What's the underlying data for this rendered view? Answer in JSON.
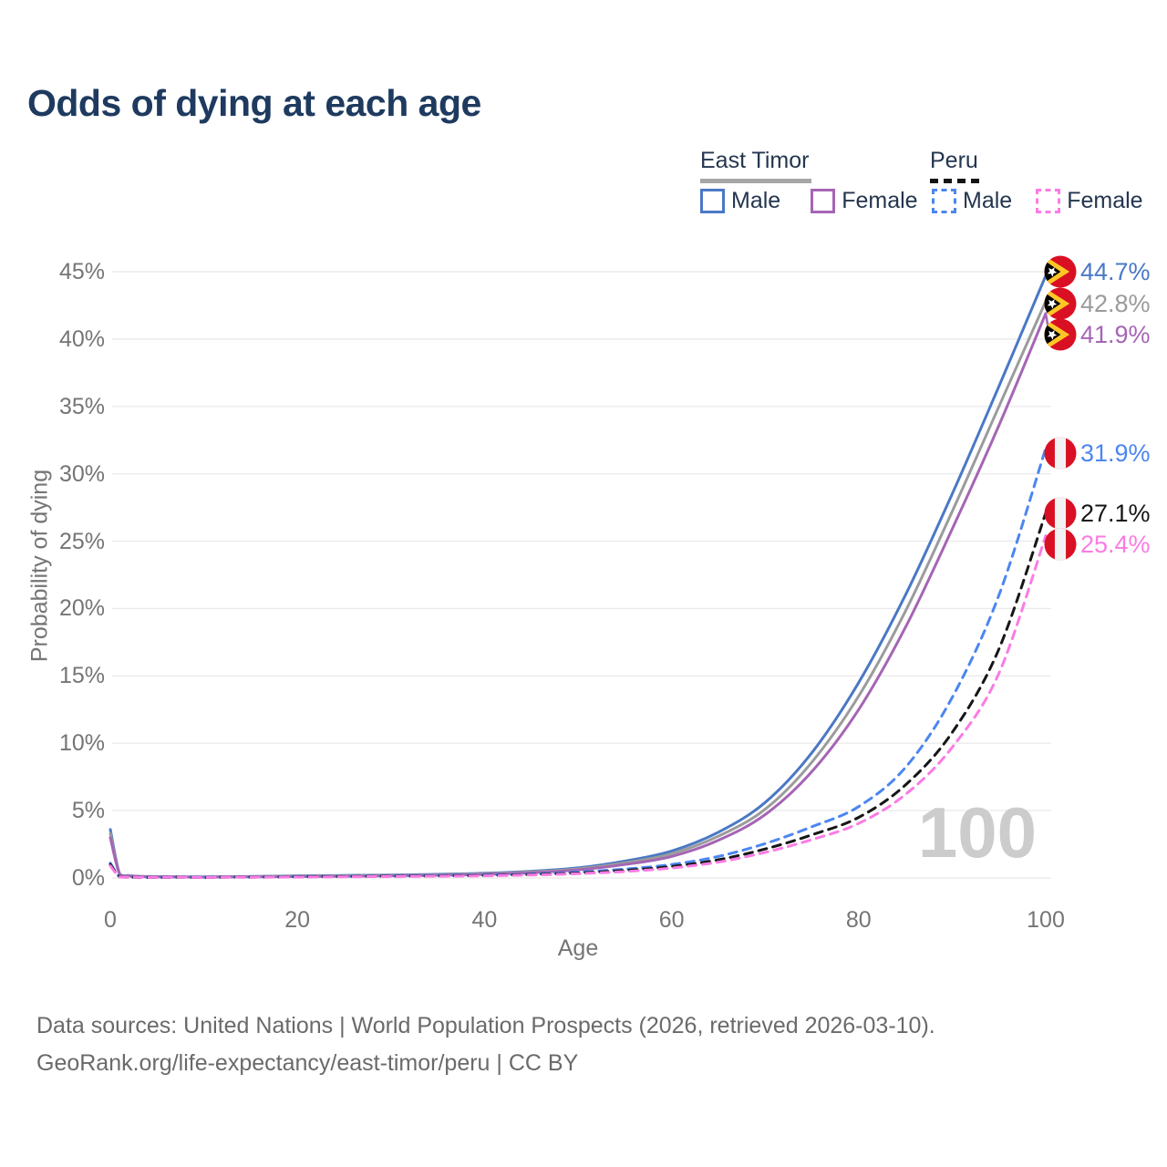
{
  "page": {
    "title": "Odds of dying at each age",
    "legend": {
      "east_timor": {
        "label": "East Timor",
        "male": "Male",
        "female": "Female"
      },
      "peru": {
        "label": "Peru",
        "male": "Male",
        "female": "Female"
      }
    },
    "watermark_age": "100",
    "footer": {
      "line1": "Data sources: United Nations | World Population Prospects (2026, retrieved 2026-03-10).",
      "line2": "GeoRank.org/life-expectancy/east-timor/peru | CC BY"
    }
  },
  "colors": {
    "title_navy": "#1e3a5f",
    "tick_gray": "#757575",
    "gridline": "#ebebeb",
    "watermark": "#cccccc",
    "east_timor_male": "#4a78c5",
    "east_timor_both": "#9b9b9b",
    "east_timor_female": "#a565b4",
    "peru_male": "#4c86f0",
    "peru_both": "#161616",
    "peru_female": "#fb7be4",
    "flag_red": "#d91023",
    "flag_yellow": "#ffc726"
  },
  "chart_data": {
    "type": "line",
    "title": "Odds of dying at each age",
    "xlabel": "Age",
    "ylabel": "Probability of dying",
    "xlim": [
      0,
      100
    ],
    "ylim": [
      0,
      45
    ],
    "x_ticks": [
      0,
      20,
      40,
      60,
      80,
      100
    ],
    "y_ticks": [
      0,
      5,
      10,
      15,
      20,
      25,
      30,
      35,
      40,
      45
    ],
    "y_tick_suffix": "%",
    "grid": "horizontal",
    "legend_position": "top-right",
    "ages": [
      0,
      1,
      2,
      3,
      4,
      5,
      10,
      15,
      20,
      25,
      30,
      35,
      40,
      45,
      50,
      55,
      60,
      65,
      70,
      75,
      80,
      85,
      90,
      95,
      100
    ],
    "series": [
      {
        "id": "east-timor-male",
        "country": "East Timor",
        "sex": "Male",
        "style": "solid",
        "color": "#4a78c5",
        "end_label": "44.7%",
        "flag": "east-timor",
        "values": [
          3.6,
          0.3,
          0.18,
          0.13,
          0.11,
          0.1,
          0.08,
          0.11,
          0.16,
          0.19,
          0.22,
          0.27,
          0.35,
          0.5,
          0.75,
          1.25,
          2.0,
          3.4,
          5.6,
          9.3,
          14.5,
          21.0,
          28.5,
          36.5,
          44.7
        ]
      },
      {
        "id": "east-timor-both",
        "country": "East Timor",
        "sex": "Both sexes",
        "style": "solid",
        "color": "#9b9b9b",
        "end_label": "42.8%",
        "flag": "east-timor",
        "values": [
          3.3,
          0.28,
          0.16,
          0.12,
          0.1,
          0.09,
          0.07,
          0.1,
          0.14,
          0.17,
          0.19,
          0.24,
          0.31,
          0.45,
          0.68,
          1.12,
          1.8,
          3.1,
          5.1,
          8.6,
          13.5,
          19.8,
          27.2,
          35.0,
          42.8
        ]
      },
      {
        "id": "east-timor-female",
        "country": "East Timor",
        "sex": "Female",
        "style": "solid",
        "color": "#a565b4",
        "end_label": "41.9%",
        "flag": "east-timor",
        "values": [
          3.0,
          0.26,
          0.15,
          0.11,
          0.09,
          0.08,
          0.06,
          0.08,
          0.11,
          0.13,
          0.16,
          0.2,
          0.27,
          0.39,
          0.6,
          1.0,
          1.6,
          2.8,
          4.7,
          7.9,
          12.5,
          18.6,
          25.9,
          33.6,
          41.9
        ]
      },
      {
        "id": "peru-male",
        "country": "Peru",
        "sex": "Male",
        "style": "dashed",
        "color": "#4c86f0",
        "end_label": "31.9%",
        "flag": "peru",
        "values": [
          1.1,
          0.09,
          0.06,
          0.05,
          0.04,
          0.04,
          0.04,
          0.07,
          0.11,
          0.13,
          0.15,
          0.18,
          0.22,
          0.3,
          0.44,
          0.66,
          1.0,
          1.6,
          2.55,
          3.8,
          5.3,
          8.2,
          13.4,
          21.0,
          31.9
        ]
      },
      {
        "id": "peru-both",
        "country": "Peru",
        "sex": "Both sexes",
        "style": "dashed",
        "color": "#161616",
        "end_label": "27.1%",
        "flag": "peru",
        "values": [
          1.0,
          0.08,
          0.05,
          0.04,
          0.04,
          0.03,
          0.03,
          0.06,
          0.09,
          0.11,
          0.13,
          0.15,
          0.19,
          0.26,
          0.37,
          0.56,
          0.85,
          1.35,
          2.15,
          3.2,
          4.5,
          6.9,
          10.8,
          17.0,
          27.1
        ]
      },
      {
        "id": "peru-female",
        "country": "Peru",
        "sex": "Female",
        "style": "dashed",
        "color": "#fb7be4",
        "end_label": "25.4%",
        "flag": "peru",
        "values": [
          0.9,
          0.07,
          0.05,
          0.04,
          0.03,
          0.03,
          0.03,
          0.05,
          0.07,
          0.09,
          0.11,
          0.13,
          0.16,
          0.22,
          0.32,
          0.48,
          0.74,
          1.18,
          1.9,
          2.85,
          4.05,
          6.2,
          9.7,
          15.2,
          25.4
        ]
      }
    ]
  }
}
